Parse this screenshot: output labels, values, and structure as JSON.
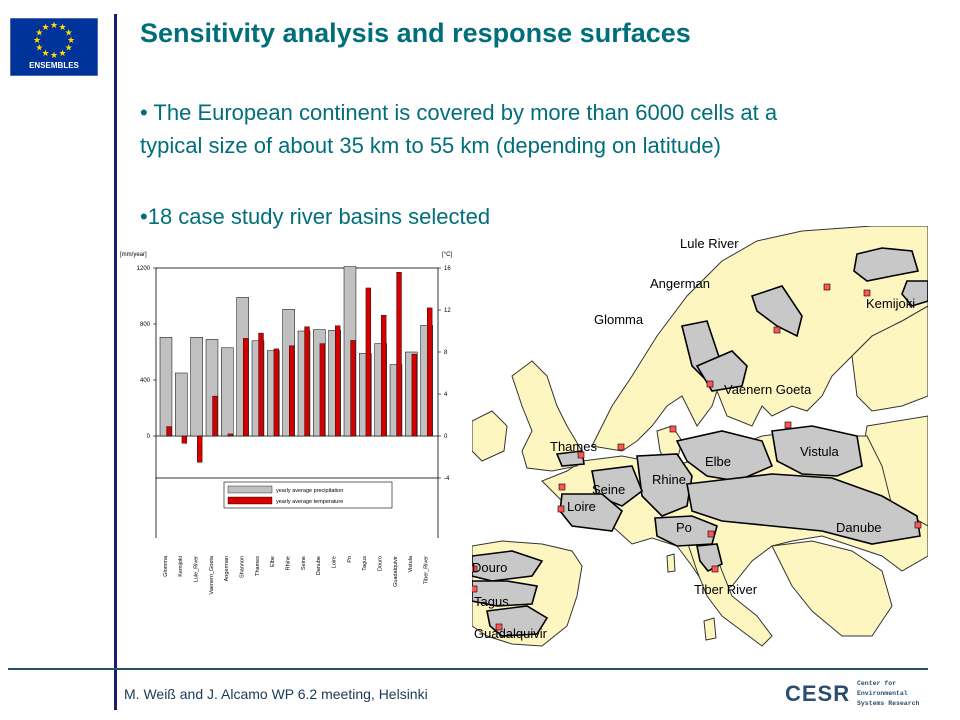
{
  "slide": {
    "title": "Sensitivity analysis and response surfaces",
    "bullet1_line1": "• The European continent is covered by more than 6000 cells at a",
    "bullet1_line2": "typical size of about 35 km to 55 km (depending on latitude)",
    "bullet2": "•18 case study river basins selected",
    "footer": "M. Weiß and J. Alcamo  WP 6.2 meeting, Helsinki",
    "eu_logo_text": "ENSEMBLES",
    "cesr_logo_text": "CESR",
    "cesr_subtitle": [
      "Center for",
      "Environmental",
      "Systems Research"
    ]
  },
  "colors": {
    "title": "#006e7b",
    "precip_bar": "#c0c0c0",
    "temp_bar": "#d40000",
    "land": "#fdf6c0",
    "sea": "#ffffff",
    "basin": "#c8c8c8",
    "eu_blue": "#003399",
    "eu_star": "#ffdd00"
  },
  "chart_data": {
    "type": "bar",
    "categories": [
      "Glomma",
      "Kemijoki",
      "Lule_River",
      "Vaenern_Goeta",
      "Angerman",
      "Shannon",
      "Thames",
      "Elbe",
      "Rhine",
      "Seine",
      "Danube",
      "Loire",
      "Po",
      "Tagus",
      "Douro",
      "Guadalquivir",
      "Vistula",
      "Tiber_River"
    ],
    "series": [
      {
        "name": "yearly average precipitation",
        "axis": "left",
        "values": [
          705,
          450,
          705,
          690,
          630,
          990,
          680,
          610,
          905,
          750,
          760,
          755,
          1210,
          590,
          660,
          510,
          600,
          790
        ]
      },
      {
        "name": "yearly average temperature",
        "axis": "right",
        "values": [
          0.9,
          -0.7,
          -2.5,
          3.8,
          0.2,
          9.3,
          9.8,
          8.3,
          8.6,
          10.4,
          8.8,
          10.5,
          9.1,
          14.1,
          11.5,
          15.6,
          7.8,
          12.2
        ]
      }
    ],
    "left_axis": {
      "label": "[mm/year]",
      "ticks": [
        0,
        400,
        800,
        1200
      ],
      "ylim": [
        -300,
        1200
      ]
    },
    "right_axis": {
      "label": "[°C]",
      "ticks": [
        -4,
        0,
        4,
        8,
        12,
        16
      ],
      "ylim": [
        -4,
        16
      ]
    },
    "legend": [
      "yearly average precipitation",
      "yearly average temperature"
    ],
    "legend_position": "bottom-right"
  },
  "map": {
    "labels": [
      "Lule River",
      "Angerman",
      "Kemijoki",
      "Glomma",
      "Vaenern Goeta",
      "Thames",
      "Elbe",
      "Vistula",
      "Rhine",
      "Seine",
      "Loire",
      "Danube",
      "Po",
      "Tiber River",
      "Douro",
      "Tagus",
      "Guadalquivir"
    ]
  }
}
